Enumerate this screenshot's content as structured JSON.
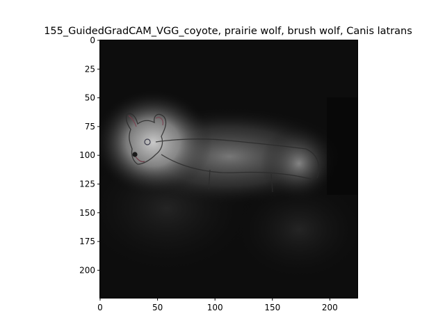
{
  "figure": {
    "title": "155_GuidedGradCAM_VGG_coyote, prairie wolf, brush wolf, Canis latrans"
  },
  "image": {
    "description_icon": "coyote-saliency-heatmap",
    "background_color": "#0b0b0b",
    "highlight_color": "#bdbdbd"
  },
  "axes": {
    "x_ticks": [
      "0",
      "50",
      "100",
      "150",
      "200"
    ],
    "y_ticks": [
      "0",
      "25",
      "50",
      "75",
      "100",
      "125",
      "150",
      "175",
      "200"
    ],
    "x_tick_values": [
      0,
      50,
      100,
      150,
      200
    ],
    "y_tick_values": [
      0,
      25,
      50,
      75,
      100,
      125,
      150,
      175,
      200
    ],
    "xlim": [
      0,
      224
    ],
    "ylim": [
      224,
      0
    ]
  }
}
